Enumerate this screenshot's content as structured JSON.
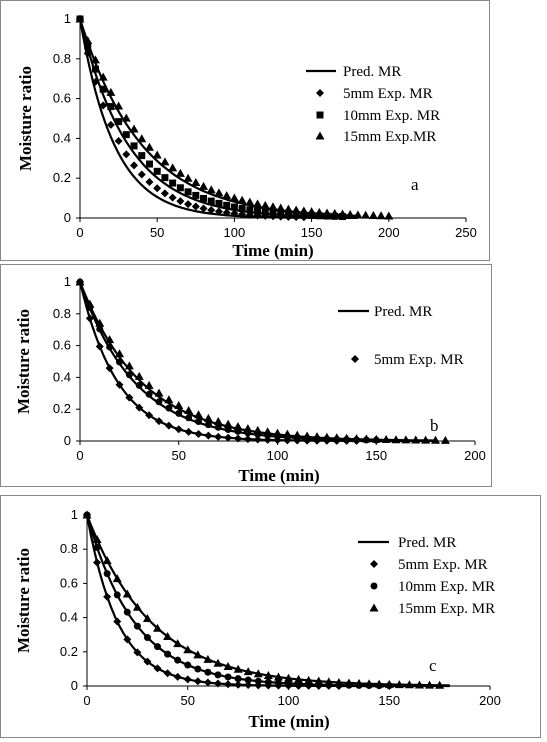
{
  "chart_data": [
    {
      "type": "scatter",
      "panel_label": "a",
      "xlabel": "Time (min)",
      "ylabel": "Moisture ratio",
      "xlim": [
        0,
        250
      ],
      "ylim": [
        0,
        1
      ],
      "xticks": [
        "0",
        "50",
        "100",
        "150",
        "200",
        "250"
      ],
      "yticks": [
        "0",
        "0.2",
        "0.4",
        "0.6",
        "0.8",
        "1"
      ],
      "legend_position": "right",
      "series": [
        {
          "name": "Pred. MR",
          "kind": "line",
          "k": [
            0.045,
            0.032,
            0.025
          ]
        },
        {
          "name": "5mm Exp. MR",
          "kind": "points",
          "marker": "diamond",
          "k": 0.038,
          "x_max": 145,
          "step": 5
        },
        {
          "name": "10mm Exp. MR",
          "kind": "points",
          "marker": "square",
          "k": 0.029,
          "x_max": 170,
          "step": 5
        },
        {
          "name": "15mm Exp.MR",
          "kind": "points",
          "marker": "triangle",
          "k": 0.023,
          "x_max": 200,
          "step": 5
        }
      ]
    },
    {
      "type": "scatter",
      "panel_label": "b",
      "xlabel": "Time (min)",
      "ylabel": "Moisture ratio",
      "xlim": [
        0,
        200
      ],
      "ylim": [
        0,
        1
      ],
      "xticks": [
        "0",
        "50",
        "100",
        "150",
        "200"
      ],
      "yticks": [
        "0",
        "0.2",
        "0.4",
        "0.6",
        "0.8",
        "1"
      ],
      "legend_position": "right",
      "series": [
        {
          "name": "Pred. MR",
          "kind": "line",
          "k": [
            0.052,
            0.036,
            0.032
          ]
        },
        {
          "name": "5mm Exp. MR",
          "kind": "points",
          "marker": "diamond",
          "k": 0.052,
          "x_max": 140,
          "step": 5
        },
        {
          "name": "",
          "kind": "points",
          "marker": "circle",
          "k": 0.035,
          "x_max": 150,
          "step": 5
        },
        {
          "name": "",
          "kind": "points",
          "marker": "triangle",
          "k": 0.03,
          "x_max": 185,
          "step": 5
        }
      ]
    },
    {
      "type": "scatter",
      "panel_label": "c",
      "xlabel": "Time (min)",
      "ylabel": "Moisture ratio",
      "xlim": [
        0,
        200
      ],
      "ylim": [
        0,
        1
      ],
      "xticks": [
        "0",
        "50",
        "100",
        "150",
        "200"
      ],
      "yticks": [
        "0",
        "0.2",
        "0.4",
        "0.6",
        "0.8",
        "1"
      ],
      "legend_position": "right",
      "series": [
        {
          "name": "Pred. MR",
          "kind": "line",
          "k": [
            0.065,
            0.042,
            0.031
          ]
        },
        {
          "name": "5mm Exp. MR",
          "kind": "points",
          "marker": "diamond",
          "k": 0.065,
          "x_max": 125,
          "step": 5
        },
        {
          "name": "10mm Exp. MR",
          "kind": "points",
          "marker": "circle",
          "k": 0.042,
          "x_max": 150,
          "step": 5
        },
        {
          "name": "15mm Exp. MR",
          "kind": "points",
          "marker": "triangle",
          "k": 0.031,
          "x_max": 175,
          "step": 5
        }
      ]
    }
  ]
}
